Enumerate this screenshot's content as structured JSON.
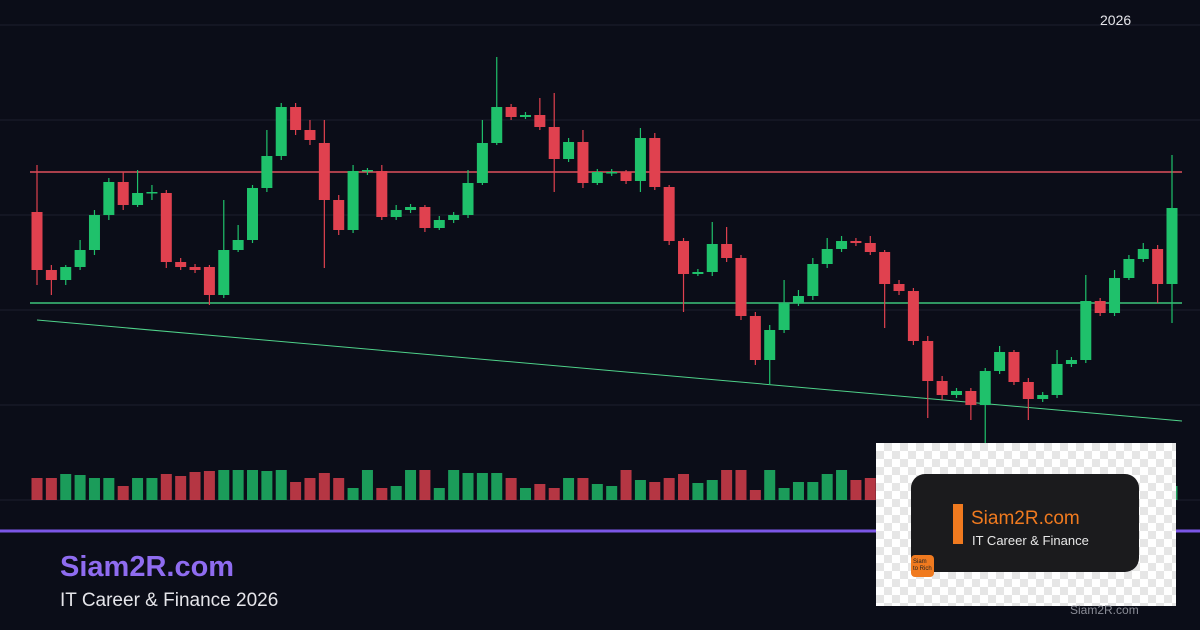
{
  "chart_data": {
    "type": "candlestick",
    "annotation": "2026",
    "ylim": [
      0,
      500
    ],
    "yticks": [
      0,
      95,
      190,
      285,
      380,
      475
    ],
    "grid": true,
    "up_color": "#1fc16b",
    "down_color": "#e0414f",
    "open": [
      288,
      230,
      220,
      233,
      250,
      285,
      318,
      295,
      307,
      307,
      238,
      233,
      233,
      205,
      250,
      260,
      312,
      344,
      393,
      370,
      357,
      300,
      270,
      329,
      329,
      283,
      290,
      293,
      272,
      280,
      285,
      317,
      357,
      393,
      383,
      385,
      373,
      341,
      358,
      317,
      327,
      328,
      319,
      362,
      313,
      259,
      226,
      228,
      256,
      242,
      184,
      140,
      170,
      197,
      204,
      236,
      251,
      259,
      257,
      248,
      216,
      209,
      159,
      119,
      105,
      109,
      95,
      129,
      148,
      118,
      101,
      105,
      136,
      140,
      199,
      187,
      222,
      241,
      251,
      216
    ],
    "high": [
      335,
      235,
      235,
      260,
      290,
      322,
      328,
      330,
      315,
      310,
      242,
      236,
      235,
      300,
      275,
      315,
      370,
      397,
      397,
      380,
      380,
      305,
      335,
      332,
      335,
      295,
      296,
      295,
      284,
      288,
      330,
      380,
      443,
      396,
      388,
      402,
      407,
      362,
      370,
      331,
      331,
      330,
      372,
      367,
      315,
      262,
      231,
      278,
      273,
      245,
      188,
      175,
      220,
      210,
      242,
      262,
      264,
      262,
      264,
      250,
      220,
      212,
      164,
      124,
      112,
      112,
      132,
      154,
      150,
      122,
      108,
      150,
      143,
      225,
      202,
      230,
      245,
      257,
      255,
      345
    ],
    "low": [
      215,
      205,
      215,
      230,
      245,
      280,
      290,
      293,
      300,
      232,
      230,
      227,
      195,
      202,
      248,
      257,
      308,
      340,
      365,
      355,
      232,
      265,
      267,
      325,
      280,
      280,
      287,
      268,
      270,
      277,
      282,
      315,
      355,
      380,
      381,
      370,
      308,
      338,
      312,
      315,
      324,
      316,
      308,
      310,
      255,
      188,
      224,
      224,
      238,
      180,
      135,
      115,
      167,
      194,
      200,
      232,
      248,
      254,
      245,
      172,
      205,
      155,
      82,
      100,
      102,
      80,
      57,
      126,
      115,
      80,
      98,
      102,
      133,
      137,
      184,
      184,
      220,
      238,
      197,
      177
    ],
    "close": [
      230,
      220,
      233,
      250,
      285,
      318,
      295,
      307,
      308,
      238,
      233,
      230,
      205,
      250,
      260,
      312,
      344,
      393,
      370,
      360,
      300,
      270,
      329,
      330,
      283,
      290,
      293,
      272,
      280,
      285,
      317,
      357,
      393,
      383,
      385,
      373,
      341,
      358,
      317,
      328,
      328,
      319,
      362,
      313,
      259,
      226,
      228,
      256,
      242,
      184,
      140,
      170,
      197,
      204,
      236,
      251,
      259,
      257,
      248,
      216,
      209,
      159,
      119,
      105,
      109,
      95,
      129,
      148,
      118,
      101,
      105,
      136,
      140,
      199,
      187,
      222,
      241,
      251,
      216,
      292
    ],
    "volume": [
      22,
      22,
      26,
      25,
      22,
      22,
      14,
      22,
      22,
      26,
      24,
      28,
      29,
      30,
      30,
      30,
      29,
      30,
      18,
      22,
      27,
      22,
      12,
      30,
      12,
      14,
      30,
      30,
      12,
      30,
      27,
      27,
      27,
      22,
      12,
      16,
      12,
      22,
      22,
      16,
      14,
      30,
      20,
      18,
      22,
      26,
      17,
      20,
      30,
      30,
      10,
      30,
      12,
      18,
      18,
      26,
      30,
      20,
      22,
      28,
      30,
      22,
      12,
      22,
      30,
      26,
      24,
      18,
      20,
      22,
      20,
      24,
      26,
      22,
      18,
      20,
      26,
      24,
      20,
      14
    ],
    "volume_lim": [
      0,
      150
    ],
    "levels": [
      {
        "color": "#e0505c",
        "value": 328
      },
      {
        "color": "#3cc47a",
        "value": 197
      }
    ],
    "trendline": {
      "color": "#4fd28a",
      "values": [
        180,
        79
      ]
    },
    "brand": {
      "name": "Siam2R.com",
      "tagline": "IT Career & Finance 2026"
    },
    "logo": {
      "title": "Siam2R.com",
      "subtitle": "IT Career & Finance",
      "badge": [
        "Siam",
        "to Rich"
      ]
    },
    "watermark": "Siam2R.com"
  }
}
